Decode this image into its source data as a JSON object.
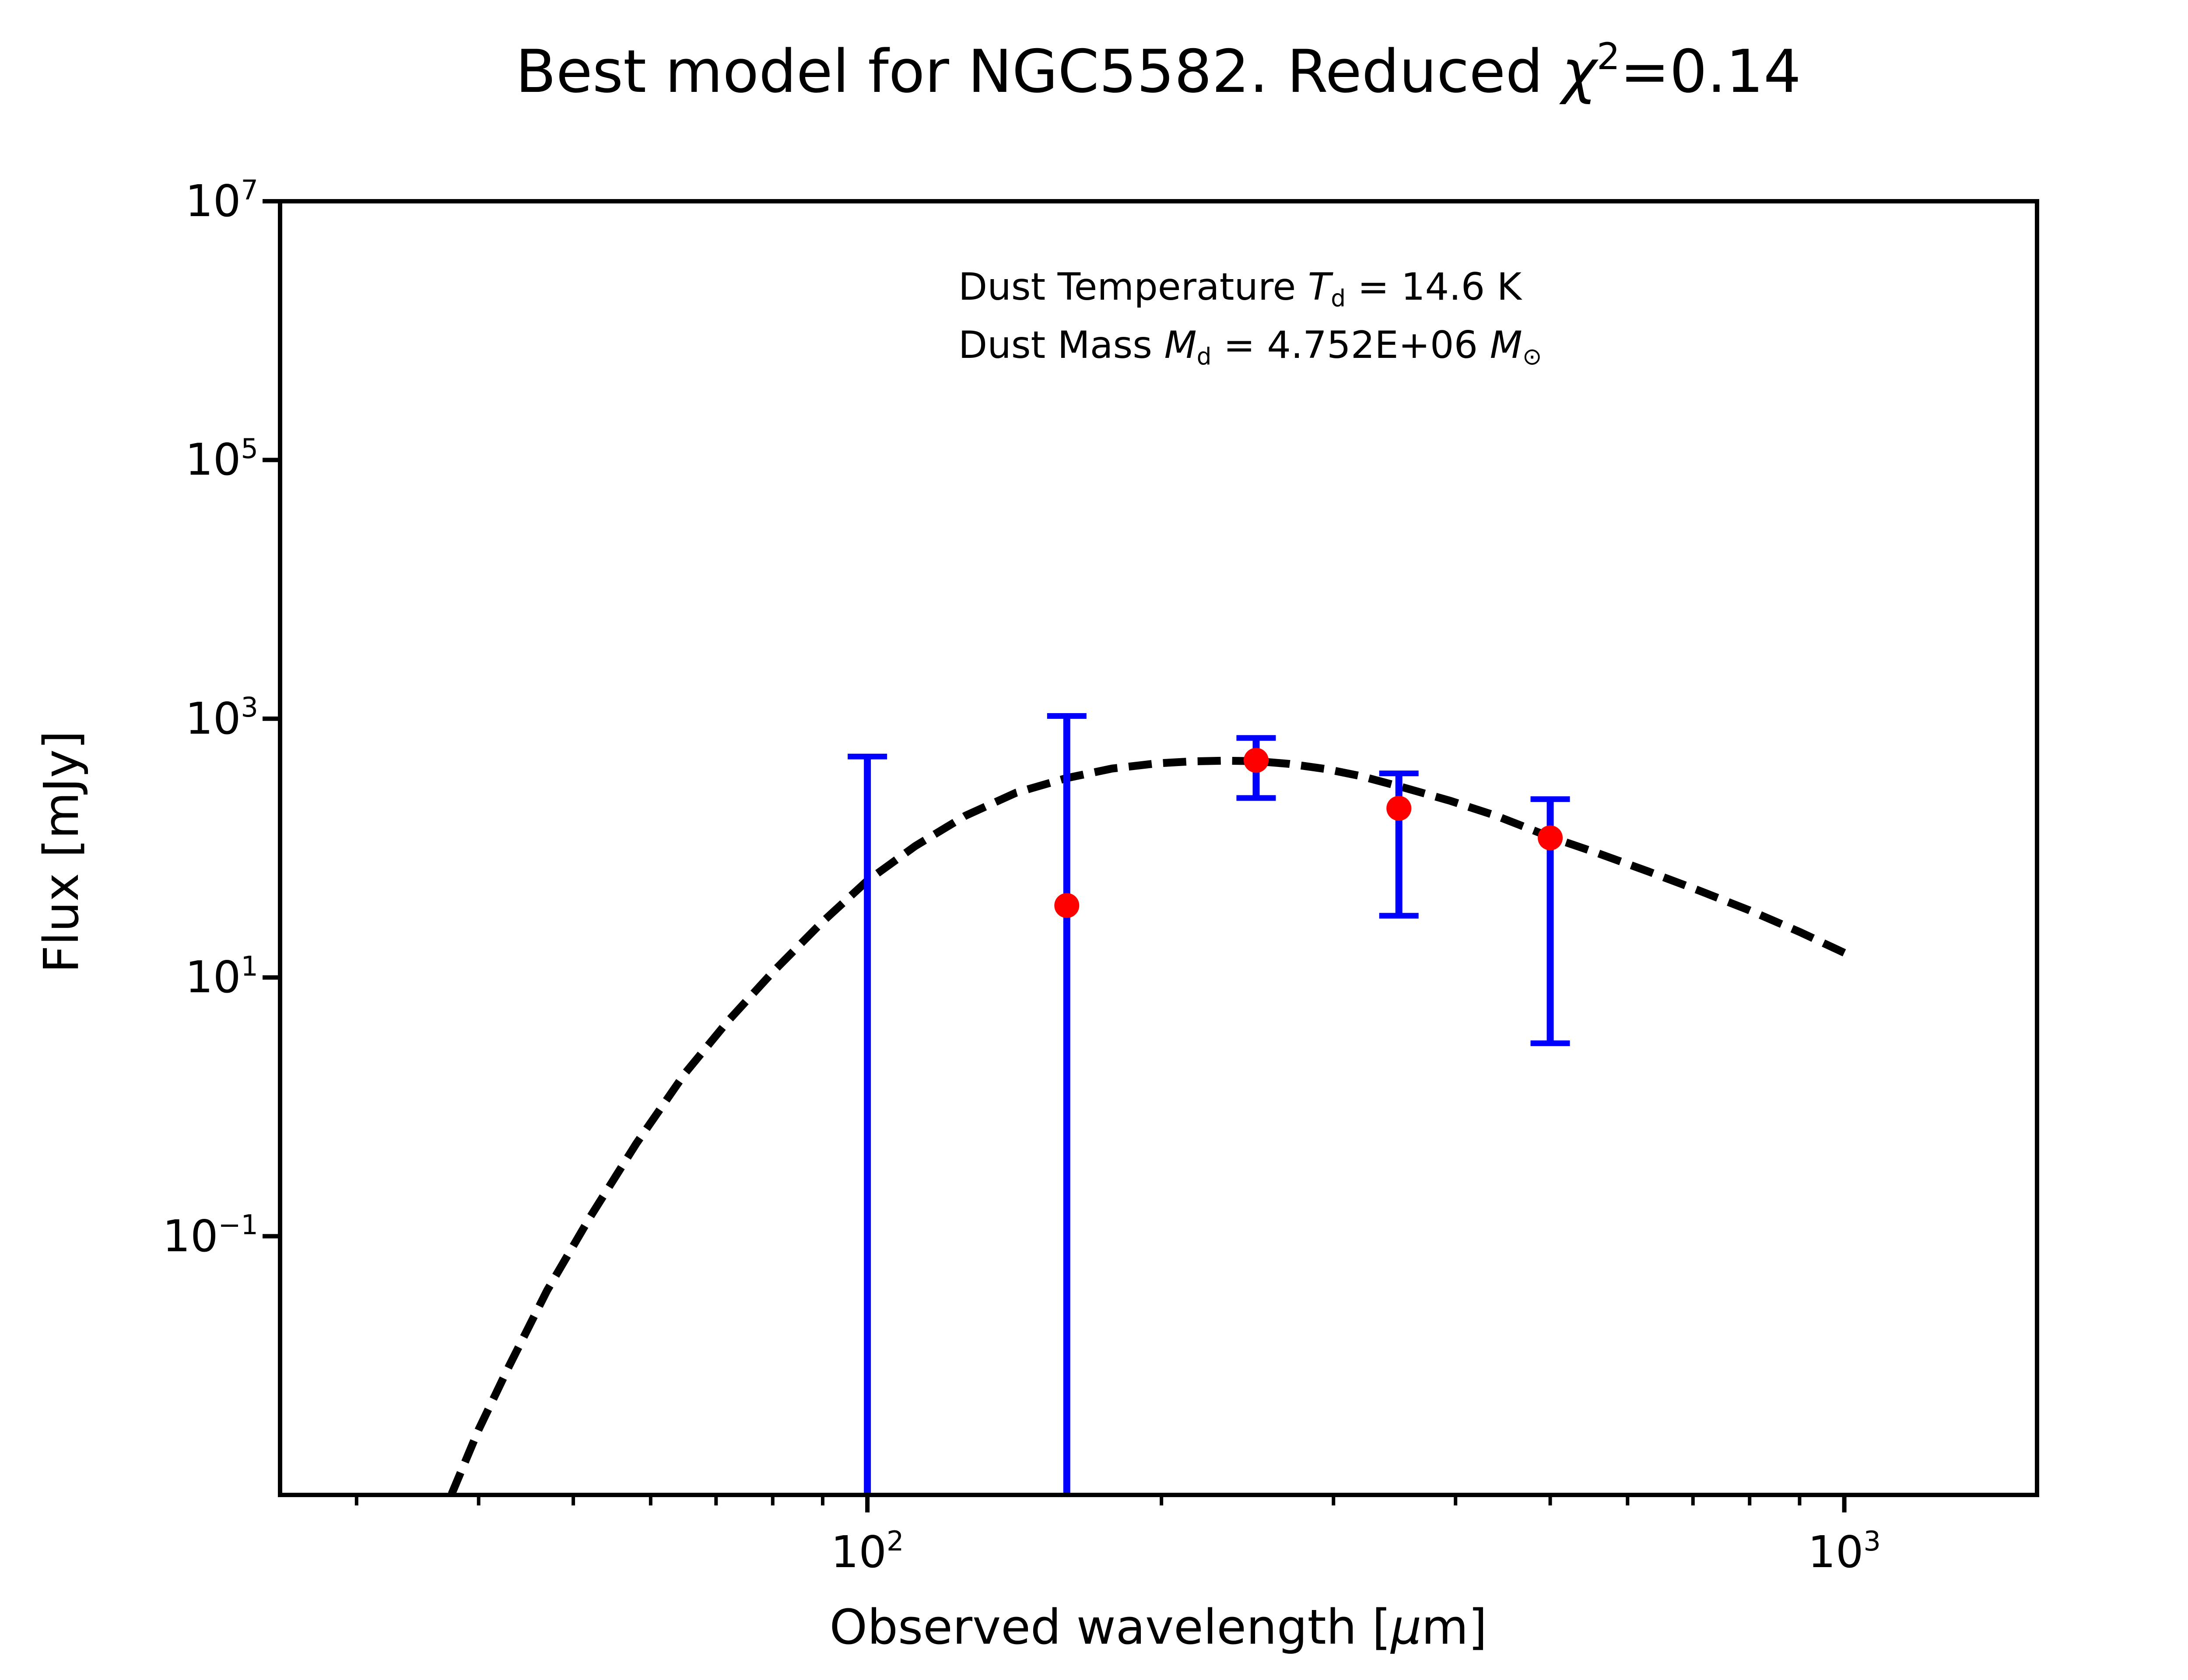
{
  "figure": {
    "background_color": "#ffffff",
    "title_text": "Best model for NGC5582. Reduced χ²=0.14",
    "title_parts": [
      {
        "t": "Best model for NGC5582. Reduced "
      },
      {
        "t": "χ",
        "i": 1
      },
      {
        "t": "2",
        "sup": 1
      },
      {
        "t": "=0.14"
      }
    ]
  },
  "annotation": {
    "lines": [
      {
        "text": "Dust Temperature Td = 14.6 K",
        "parts": [
          {
            "t": "Dust Temperature "
          },
          {
            "t": "T",
            "i": 1
          },
          {
            "t": "d",
            "sub": 1
          },
          {
            "t": " = 14.6 K"
          }
        ]
      },
      {
        "text": "Dust Mass Md = 4.752E+06 M⊙",
        "parts": [
          {
            "t": "Dust Mass "
          },
          {
            "t": "M",
            "i": 1
          },
          {
            "t": "d",
            "sub": 1
          },
          {
            "t": " = 4.752E+06 "
          },
          {
            "t": "M",
            "i": 1
          },
          {
            "t": "⊙",
            "sub": 1
          }
        ]
      }
    ]
  },
  "axes": {
    "xlabel_text": "Observed wavelength [μm]",
    "xlabel_parts": [
      {
        "t": "Observed wavelength ["
      },
      {
        "t": "μ",
        "i": 1
      },
      {
        "t": "m]"
      }
    ],
    "ylabel_text": "Flux [mJy]",
    "x": {
      "scale": "log",
      "min": 25.05,
      "max": 1575,
      "major_tick_exponents": [
        2,
        3
      ],
      "minor_tick_values": [
        30,
        40,
        50,
        60,
        70,
        80,
        90,
        200,
        300,
        400,
        500,
        600,
        700,
        800,
        900
      ]
    },
    "y": {
      "scale": "log",
      "min": 0.001,
      "max": 10000000,
      "major_tick_exponents": [
        7,
        5,
        3,
        1,
        -1
      ]
    }
  },
  "chart_data": {
    "type": "scatter",
    "title": "Best model for NGC5582. Reduced χ²=0.14",
    "xlabel": "Observed wavelength [μm]",
    "ylabel": "Flux [mJy]",
    "x_scale": "log",
    "y_scale": "log",
    "xlim": [
      25.05,
      1575
    ],
    "ylim": [
      0.001,
      10000000
    ],
    "grid": false,
    "legend": false,
    "fit_parameters": {
      "dust_temperature_K": 14.6,
      "dust_mass_Msun": "4.752E+06",
      "reduced_chi_squared": 0.14
    },
    "points": [
      {
        "wavelength_um": 100,
        "flux_mJy": null,
        "errorbar_top_mJy": 510,
        "errorbar_bottom_mJy": null,
        "marker": false,
        "note": "marker and lower error below plotted range"
      },
      {
        "wavelength_um": 160,
        "flux_mJy": 36,
        "errorbar_top_mJy": 1050,
        "errorbar_bottom_mJy": null,
        "marker": true,
        "note": "lower error below plotted range"
      },
      {
        "wavelength_um": 250,
        "flux_mJy": 477,
        "errorbar_top_mJy": 710,
        "errorbar_bottom_mJy": 244,
        "marker": true
      },
      {
        "wavelength_um": 350,
        "flux_mJy": 203,
        "errorbar_top_mJy": 378,
        "errorbar_bottom_mJy": 30,
        "marker": true
      },
      {
        "wavelength_um": 500,
        "flux_mJy": 120,
        "errorbar_top_mJy": 239,
        "errorbar_bottom_mJy": 3.1,
        "marker": true
      }
    ],
    "model_curve": {
      "label": "best-fit modified blackbody model (dashed)",
      "samples": [
        [
          36,
          0.0006
        ],
        [
          37.5,
          0.001
        ],
        [
          40,
          0.0032
        ],
        [
          43,
          0.01
        ],
        [
          47,
          0.038
        ],
        [
          52,
          0.14
        ],
        [
          58,
          0.52
        ],
        [
          65,
          1.8
        ],
        [
          72,
          4.6
        ],
        [
          80,
          11
        ],
        [
          90,
          27
        ],
        [
          100,
          56
        ],
        [
          112,
          104
        ],
        [
          126,
          178
        ],
        [
          142,
          268
        ],
        [
          160,
          348
        ],
        [
          178,
          412
        ],
        [
          198,
          452
        ],
        [
          215,
          468
        ],
        [
          232,
          474
        ],
        [
          250,
          470
        ],
        [
          270,
          448
        ],
        [
          295,
          408
        ],
        [
          320,
          360
        ],
        [
          355,
          292
        ],
        [
          395,
          232
        ],
        [
          440,
          178
        ],
        [
          500,
          122
        ],
        [
          560,
          91
        ],
        [
          630,
          66
        ],
        [
          710,
          47
        ],
        [
          800,
          33
        ],
        [
          900,
          22.5
        ],
        [
          1000,
          15.5
        ]
      ]
    }
  },
  "style": {
    "errorbar_color": "#0000ff",
    "marker_color": "#ff0000",
    "curve_color": "#000000",
    "spine_color": "#000000",
    "text_color": "#000000"
  }
}
